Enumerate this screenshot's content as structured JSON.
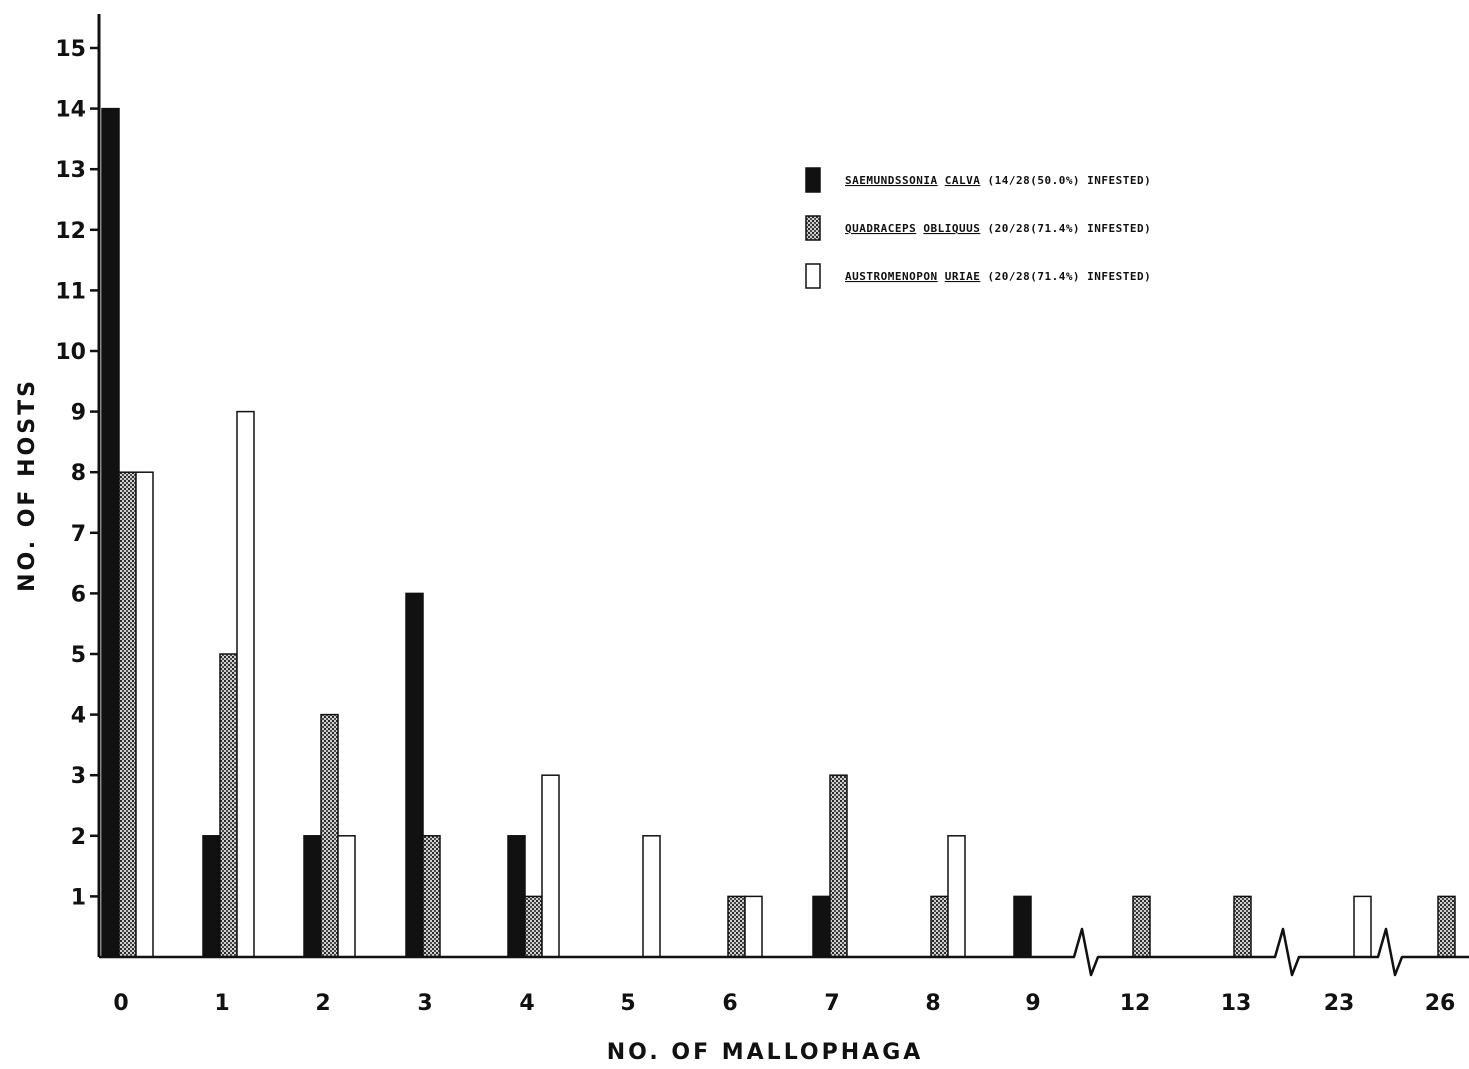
{
  "chart_data": {
    "type": "bar",
    "xlabel": "NO. OF MALLOPHAGA",
    "ylabel": "NO. OF HOSTS",
    "ylim": [
      0,
      15
    ],
    "yticks": [
      1,
      2,
      3,
      4,
      5,
      6,
      7,
      8,
      9,
      10,
      11,
      12,
      13,
      14,
      15
    ],
    "categories": [
      "0",
      "1",
      "2",
      "3",
      "4",
      "5",
      "6",
      "7",
      "8",
      "9",
      "12",
      "13",
      "23",
      "26"
    ],
    "axis_breaks_after": [
      "9",
      "13",
      "23"
    ],
    "legend_position": "top-right",
    "grid": false,
    "series": [
      {
        "genus": "SAEMUNDSSONIA",
        "species": "CALVA",
        "note": "(14/28(50.0%) INFESTED)",
        "fill": "solid",
        "color": "#111111",
        "values": [
          14,
          2,
          2,
          6,
          2,
          0,
          0,
          1,
          0,
          1,
          0,
          0,
          0,
          0
        ]
      },
      {
        "genus": "QUADRACEPS",
        "species": "OBLIQUUS",
        "note": "(20/28(71.4%) INFESTED)",
        "fill": "stippled",
        "color": "#555555",
        "values": [
          8,
          5,
          4,
          2,
          1,
          0,
          1,
          3,
          1,
          0,
          1,
          1,
          0,
          1
        ]
      },
      {
        "genus": "AUSTROMENOPON",
        "species": "URIAE",
        "note": "(20/28(71.4%) INFESTED)",
        "fill": "open",
        "color": "#ffffff",
        "values": [
          8,
          9,
          2,
          0,
          3,
          2,
          1,
          0,
          2,
          0,
          0,
          0,
          1,
          0
        ]
      }
    ]
  }
}
